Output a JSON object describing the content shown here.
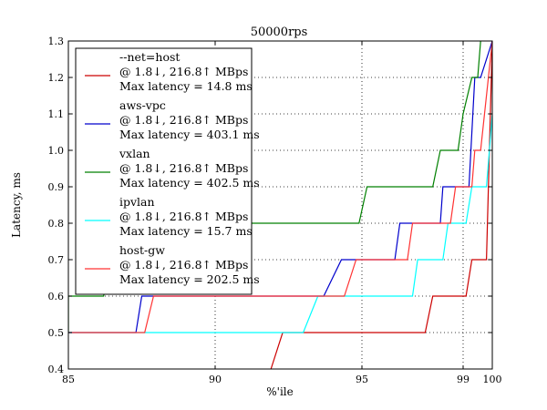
{
  "chart_data": {
    "type": "line",
    "title": "50000rps",
    "xlabel": "%'ile",
    "ylabel": "Latency, ms",
    "xlim": [
      85,
      100
    ],
    "ylim": [
      0.4,
      1.3
    ],
    "x_axis_note": "nonlinear percentile axis (compressed toward 100)",
    "x_ticks": [
      85,
      90,
      95,
      99,
      100
    ],
    "y_ticks": [
      0.4,
      0.5,
      0.6,
      0.7,
      0.8,
      0.9,
      1.0,
      1.1,
      1.2,
      1.3
    ],
    "grid": true,
    "legend_position": "upper-left",
    "series": [
      {
        "name": "--net=host",
        "subtitle": "@ 1.8↓, 216.8↑ MBps",
        "max_latency": "Max latency = 14.8 ms",
        "color": "#cc0000",
        "points": [
          [
            91.9,
            0.4
          ],
          [
            92.3,
            0.5
          ],
          [
            97.5,
            0.5
          ],
          [
            97.8,
            0.6
          ],
          [
            99.1,
            0.6
          ],
          [
            99.3,
            0.7
          ],
          [
            99.8,
            0.7
          ],
          [
            100,
            1.3
          ]
        ]
      },
      {
        "name": "aws-vpc",
        "subtitle": "@ 1.8↓, 216.8↑ MBps",
        "max_latency": "Max latency = 403.1 ms",
        "color": "#0000cc",
        "points": [
          [
            85,
            0.5
          ],
          [
            87.3,
            0.5
          ],
          [
            87.5,
            0.6
          ],
          [
            88.0,
            0.6
          ],
          [
            93.7,
            0.6
          ],
          [
            94.3,
            0.7
          ],
          [
            95.1,
            0.7
          ],
          [
            96.3,
            0.7
          ],
          [
            96.5,
            0.8
          ],
          [
            96.8,
            0.8
          ],
          [
            98.1,
            0.8
          ],
          [
            98.2,
            0.9
          ],
          [
            98.5,
            0.9
          ],
          [
            99.2,
            0.9
          ],
          [
            99.4,
            1.2
          ],
          [
            99.6,
            1.2
          ],
          [
            100,
            1.3
          ]
        ]
      },
      {
        "name": "vxlan",
        "subtitle": "@ 1.8↓, 216.8↑ MBps",
        "max_latency": "Max latency = 402.5 ms",
        "color": "#008000",
        "points": [
          [
            85,
            0.5
          ],
          [
            85.0,
            0.6
          ],
          [
            86.2,
            0.6
          ],
          [
            86.5,
            0.7
          ],
          [
            88.0,
            0.7
          ],
          [
            88.3,
            0.8
          ],
          [
            94.9,
            0.8
          ],
          [
            95.2,
            0.9
          ],
          [
            97.8,
            0.9
          ],
          [
            98.1,
            1.0
          ],
          [
            98.8,
            1.0
          ],
          [
            99.0,
            1.1
          ],
          [
            99.3,
            1.2
          ],
          [
            99.5,
            1.2
          ],
          [
            99.6,
            1.3
          ]
        ]
      },
      {
        "name": "ipvlan",
        "subtitle": "@ 1.8↓, 216.8↑ MBps",
        "max_latency": "Max latency = 15.7 ms",
        "color": "#00ffff",
        "points": [
          [
            85,
            0.5
          ],
          [
            93.0,
            0.5
          ],
          [
            93.5,
            0.6
          ],
          [
            97.0,
            0.6
          ],
          [
            97.2,
            0.7
          ],
          [
            98.2,
            0.7
          ],
          [
            98.4,
            0.8
          ],
          [
            99.1,
            0.8
          ],
          [
            99.3,
            0.9
          ],
          [
            99.8,
            0.9
          ],
          [
            100,
            1.1
          ]
        ]
      },
      {
        "name": "host-gw",
        "subtitle": "@ 1.8↓, 216.8↑ MBps",
        "max_latency": "Max latency = 202.5 ms",
        "color": "#ff3333",
        "points": [
          [
            85,
            0.5
          ],
          [
            87.6,
            0.5
          ],
          [
            87.9,
            0.6
          ],
          [
            94.4,
            0.6
          ],
          [
            94.8,
            0.7
          ],
          [
            96.8,
            0.7
          ],
          [
            97.0,
            0.8
          ],
          [
            98.5,
            0.8
          ],
          [
            98.7,
            0.9
          ],
          [
            99.3,
            0.9
          ],
          [
            99.4,
            1.0
          ],
          [
            99.6,
            1.0
          ],
          [
            100,
            1.3
          ]
        ]
      }
    ]
  }
}
